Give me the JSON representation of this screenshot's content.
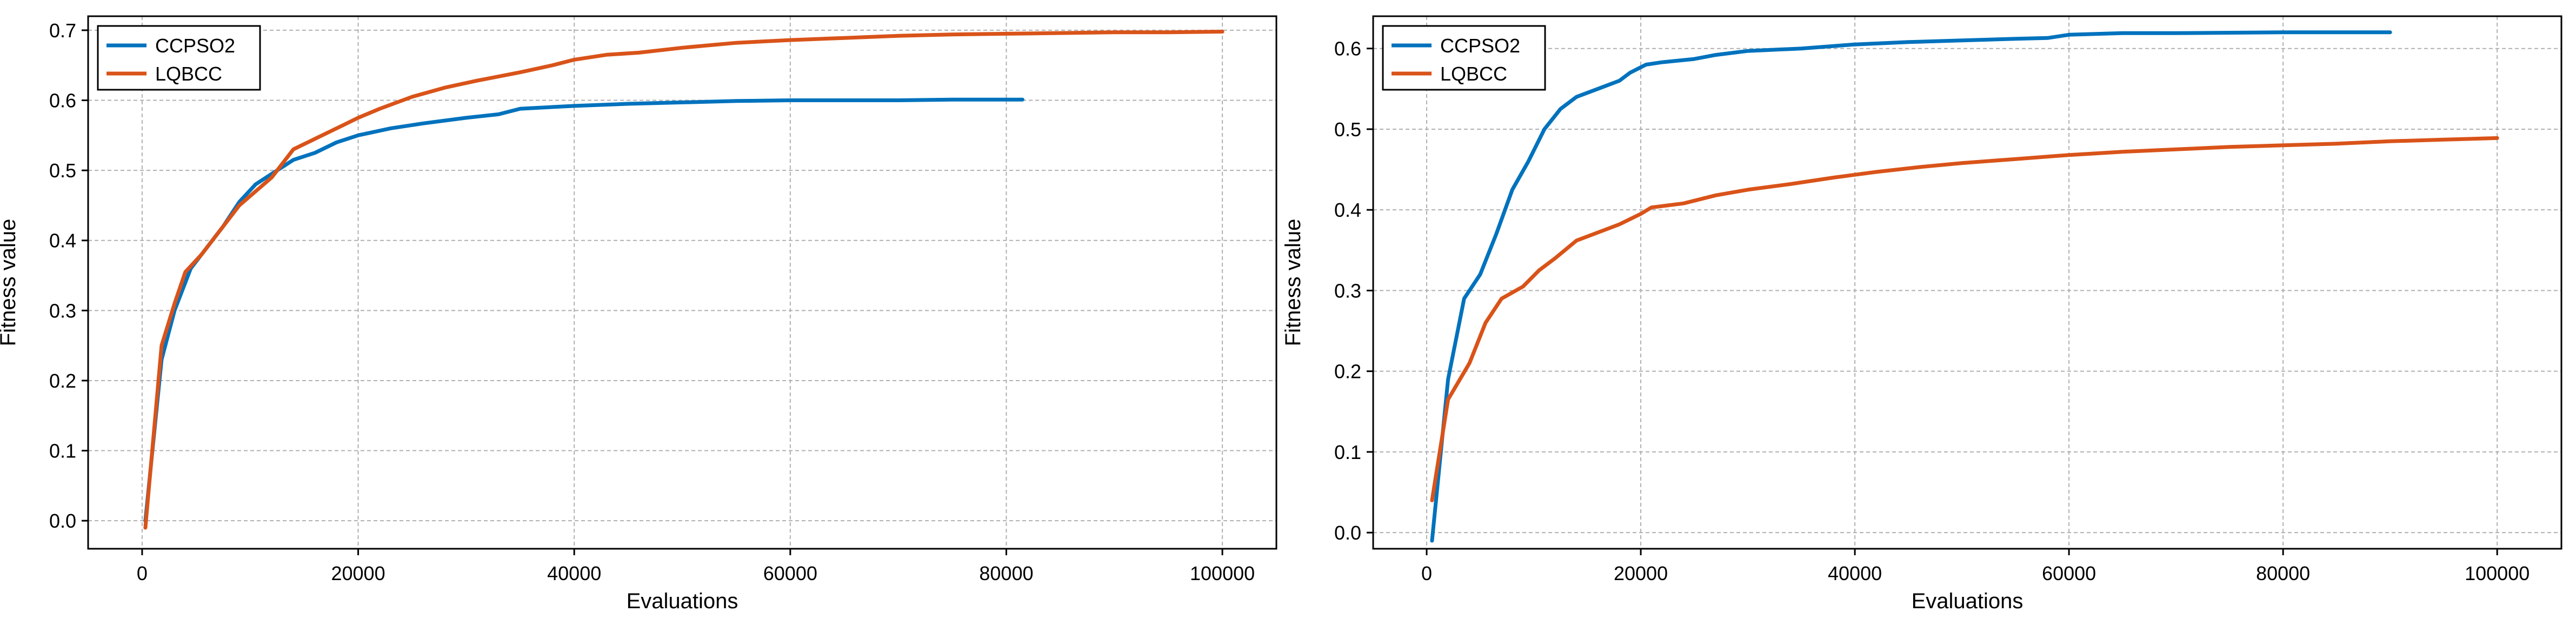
{
  "chart_data": [
    {
      "type": "line",
      "xlabel": "Evaluations",
      "ylabel": "Fitness value",
      "xlim": [
        -5000,
        105000
      ],
      "ylim": [
        -0.04,
        0.72
      ],
      "xticks": [
        0,
        20000,
        40000,
        60000,
        80000,
        100000
      ],
      "xtick_labels": [
        "0",
        "20000",
        "40000",
        "60000",
        "80000",
        "100000"
      ],
      "yticks": [
        0.0,
        0.1,
        0.2,
        0.3,
        0.4,
        0.5,
        0.6,
        0.7
      ],
      "ytick_labels": [
        "0.0",
        "0.1",
        "0.2",
        "0.3",
        "0.4",
        "0.5",
        "0.6",
        "0.7"
      ],
      "grid": true,
      "legend_position": "top-left",
      "series": [
        {
          "name": "CCPSO2",
          "color": "#0072BD",
          "points": [
            [
              300,
              0.0
            ],
            [
              1800,
              0.23
            ],
            [
              3000,
              0.3
            ],
            [
              4500,
              0.36
            ],
            [
              6000,
              0.39
            ],
            [
              7500,
              0.42
            ],
            [
              9000,
              0.455
            ],
            [
              10500,
              0.48
            ],
            [
              12000,
              0.495
            ],
            [
              14000,
              0.515
            ],
            [
              16000,
              0.525
            ],
            [
              18000,
              0.54
            ],
            [
              20000,
              0.55
            ],
            [
              23000,
              0.56
            ],
            [
              26000,
              0.567
            ],
            [
              30000,
              0.575
            ],
            [
              33000,
              0.58
            ],
            [
              35000,
              0.588
            ],
            [
              40000,
              0.592
            ],
            [
              45000,
              0.595
            ],
            [
              50000,
              0.597
            ],
            [
              55000,
              0.599
            ],
            [
              60000,
              0.6
            ],
            [
              65000,
              0.6
            ],
            [
              70000,
              0.6
            ],
            [
              75000,
              0.601
            ],
            [
              81500,
              0.601
            ]
          ]
        },
        {
          "name": "LQBCC",
          "color": "#D95319",
          "points": [
            [
              300,
              -0.01
            ],
            [
              1800,
              0.25
            ],
            [
              3000,
              0.31
            ],
            [
              4000,
              0.355
            ],
            [
              5500,
              0.38
            ],
            [
              7000,
              0.41
            ],
            [
              9000,
              0.45
            ],
            [
              10500,
              0.47
            ],
            [
              12000,
              0.49
            ],
            [
              14000,
              0.53
            ],
            [
              16000,
              0.545
            ],
            [
              18000,
              0.56
            ],
            [
              20000,
              0.575
            ],
            [
              22000,
              0.588
            ],
            [
              25000,
              0.605
            ],
            [
              28000,
              0.618
            ],
            [
              31000,
              0.628
            ],
            [
              35000,
              0.64
            ],
            [
              38000,
              0.65
            ],
            [
              40000,
              0.658
            ],
            [
              43000,
              0.665
            ],
            [
              46000,
              0.668
            ],
            [
              50000,
              0.675
            ],
            [
              55000,
              0.682
            ],
            [
              60000,
              0.686
            ],
            [
              65000,
              0.689
            ],
            [
              70000,
              0.692
            ],
            [
              75000,
              0.694
            ],
            [
              80000,
              0.695
            ],
            [
              85000,
              0.696
            ],
            [
              90000,
              0.697
            ],
            [
              95000,
              0.697
            ],
            [
              100000,
              0.698
            ]
          ]
        }
      ]
    },
    {
      "type": "line",
      "xlabel": "Evaluations",
      "ylabel": "Fitness value",
      "xlim": [
        -5000,
        106000
      ],
      "ylim": [
        -0.02,
        0.64
      ],
      "xticks": [
        0,
        20000,
        40000,
        60000,
        80000,
        100000
      ],
      "xtick_labels": [
        "0",
        "20000",
        "40000",
        "60000",
        "80000",
        "100000"
      ],
      "yticks": [
        0.0,
        0.1,
        0.2,
        0.3,
        0.4,
        0.5,
        0.6
      ],
      "ytick_labels": [
        "0.0",
        "0.1",
        "0.2",
        "0.3",
        "0.4",
        "0.5",
        "0.6"
      ],
      "grid": true,
      "legend_position": "top-left",
      "series": [
        {
          "name": "CCPSO2",
          "color": "#0072BD",
          "points": [
            [
              500,
              -0.01
            ],
            [
              2000,
              0.19
            ],
            [
              3500,
              0.29
            ],
            [
              5000,
              0.32
            ],
            [
              6500,
              0.37
            ],
            [
              8000,
              0.425
            ],
            [
              9500,
              0.46
            ],
            [
              11000,
              0.5
            ],
            [
              12500,
              0.525
            ],
            [
              14000,
              0.54
            ],
            [
              16000,
              0.55
            ],
            [
              18000,
              0.56
            ],
            [
              19000,
              0.57
            ],
            [
              20500,
              0.58
            ],
            [
              22000,
              0.583
            ],
            [
              25000,
              0.587
            ],
            [
              27000,
              0.592
            ],
            [
              30000,
              0.597
            ],
            [
              35000,
              0.6
            ],
            [
              40000,
              0.605
            ],
            [
              45000,
              0.608
            ],
            [
              50000,
              0.61
            ],
            [
              55000,
              0.612
            ],
            [
              58000,
              0.613
            ],
            [
              60000,
              0.617
            ],
            [
              65000,
              0.619
            ],
            [
              70000,
              0.619
            ],
            [
              80000,
              0.62
            ],
            [
              90000,
              0.62
            ]
          ]
        },
        {
          "name": "LQBCC",
          "color": "#D95319",
          "points": [
            [
              500,
              0.04
            ],
            [
              2000,
              0.165
            ],
            [
              4000,
              0.21
            ],
            [
              5500,
              0.26
            ],
            [
              7000,
              0.29
            ],
            [
              9000,
              0.305
            ],
            [
              10500,
              0.325
            ],
            [
              12000,
              0.34
            ],
            [
              14000,
              0.362
            ],
            [
              16000,
              0.372
            ],
            [
              18000,
              0.382
            ],
            [
              20000,
              0.395
            ],
            [
              21000,
              0.403
            ],
            [
              24000,
              0.408
            ],
            [
              27000,
              0.418
            ],
            [
              30000,
              0.425
            ],
            [
              34000,
              0.432
            ],
            [
              38000,
              0.44
            ],
            [
              42000,
              0.447
            ],
            [
              46000,
              0.453
            ],
            [
              50000,
              0.458
            ],
            [
              55000,
              0.463
            ],
            [
              60000,
              0.468
            ],
            [
              65000,
              0.472
            ],
            [
              70000,
              0.475
            ],
            [
              75000,
              0.478
            ],
            [
              80000,
              0.48
            ],
            [
              85000,
              0.482
            ],
            [
              90000,
              0.485
            ],
            [
              95000,
              0.487
            ],
            [
              100000,
              0.489
            ]
          ]
        }
      ]
    }
  ]
}
